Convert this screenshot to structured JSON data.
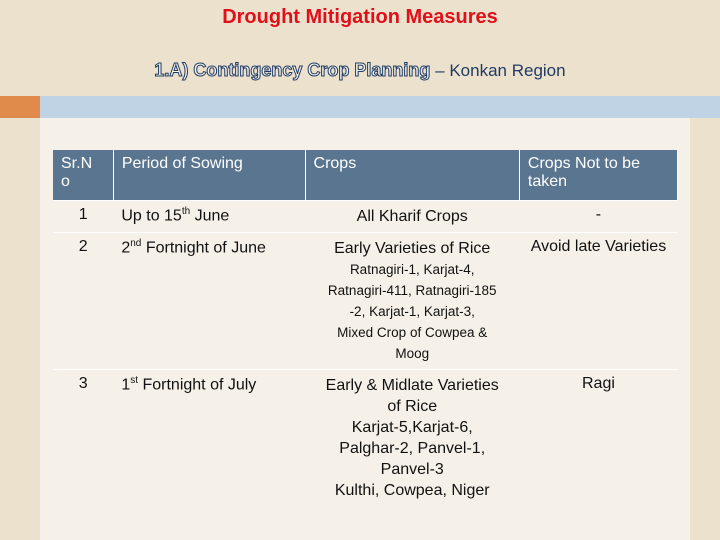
{
  "header": {
    "title": "Drought Mitigation Measures",
    "subtitle_styled": "1.A) Contingency Crop Planning",
    "subtitle_rest": "– Konkan Region"
  },
  "table": {
    "columns": [
      "Sr.N o",
      "Period of Sowing",
      "Crops",
      "Crops  Not  to be  taken"
    ],
    "rows": [
      {
        "sr": "1",
        "period": {
          "pre": "Up to 15",
          "sup": "th",
          "post": " June"
        },
        "crops": [
          "All Kharif Crops"
        ],
        "details": [],
        "not_taken": "-"
      },
      {
        "sr": "2",
        "period": {
          "pre": "2",
          "sup": "nd",
          "post": " Fortnight of June"
        },
        "crops": [
          "Early Varieties of Rice"
        ],
        "details": [
          "Ratnagiri-1, Karjat-4,",
          "Ratnagiri-411, Ratnagiri-185",
          "-2, Karjat-1, Karjat-3,",
          "Mixed Crop of Cowpea &",
          "Moog"
        ],
        "not_taken": "Avoid late Varieties"
      },
      {
        "sr": "3",
        "period": {
          "pre": "1",
          "sup": "st",
          "post": "  Fortnight of July"
        },
        "crops": [
          "Early & Midlate Varieties",
          "of Rice",
          "Karjat-5,Karjat-6,",
          "Palghar-2, Panvel-1,",
          "Panvel-3",
          "Kulthi, Cowpea, Niger"
        ],
        "details": [],
        "not_taken": "Ragi"
      }
    ]
  }
}
